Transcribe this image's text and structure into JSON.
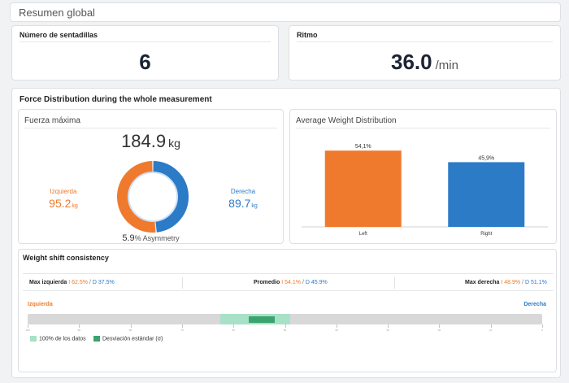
{
  "header": {
    "title": "Resumen global"
  },
  "squats": {
    "label": "Número de sentadillas",
    "value": "6"
  },
  "rhythm": {
    "label": "Ritmo",
    "value": "36.0",
    "unit": "/min"
  },
  "force_section": {
    "title": "Force Distribution during the whole measurement"
  },
  "max_force": {
    "title": "Fuerza máxima",
    "total": "184.9",
    "unit": "kg",
    "left": {
      "label": "Izquierda",
      "value": "95.2",
      "unit": "kg"
    },
    "right": {
      "label": "Derecha",
      "value": "89.7",
      "unit": "kg"
    },
    "asymmetry_value": "5.9",
    "asymmetry_text": "% Asymmetry",
    "donut_split": {
      "left": 51.5,
      "right": 48.5
    }
  },
  "avg_weight": {
    "title": "Average Weight Distribution"
  },
  "chart_data": {
    "type": "bar",
    "categories": [
      "Left",
      "Right"
    ],
    "values": [
      54.1,
      45.9
    ],
    "value_labels": [
      "54,1%",
      "45,9%"
    ],
    "colors": [
      "#ef7a2d",
      "#2b7bc7"
    ],
    "title": "Average Weight Distribution",
    "xlabel": "",
    "ylabel": "",
    "ylim": [
      0,
      60
    ]
  },
  "shift": {
    "title": "Weight shift consistency",
    "stats": [
      {
        "label": "Max izquierda",
        "left": "I 62.5%",
        "sep": " / ",
        "right": "D 37.5%"
      },
      {
        "label": "Promedio",
        "left": "I 54.1%",
        "sep": " / ",
        "right": "D 45.9%"
      },
      {
        "label": "Max derecha",
        "left": "I 48.9%",
        "sep": " / ",
        "right": "D 51.1%"
      }
    ],
    "range_left_label": "Izquierda",
    "range_right_label": "Derecha",
    "full_range": [
      37.5,
      51.1
    ],
    "std_range": [
      43,
      48
    ],
    "scale_ticks": [
      "100",
      "90",
      "80",
      "70",
      "60",
      "50",
      "40",
      "30",
      "20",
      "10",
      "0"
    ],
    "legend": [
      {
        "label": "100% de los datos",
        "color": "#a7e1c7"
      },
      {
        "label": "Desviación estándar (σ)",
        "color": "#3aa36f"
      }
    ]
  }
}
